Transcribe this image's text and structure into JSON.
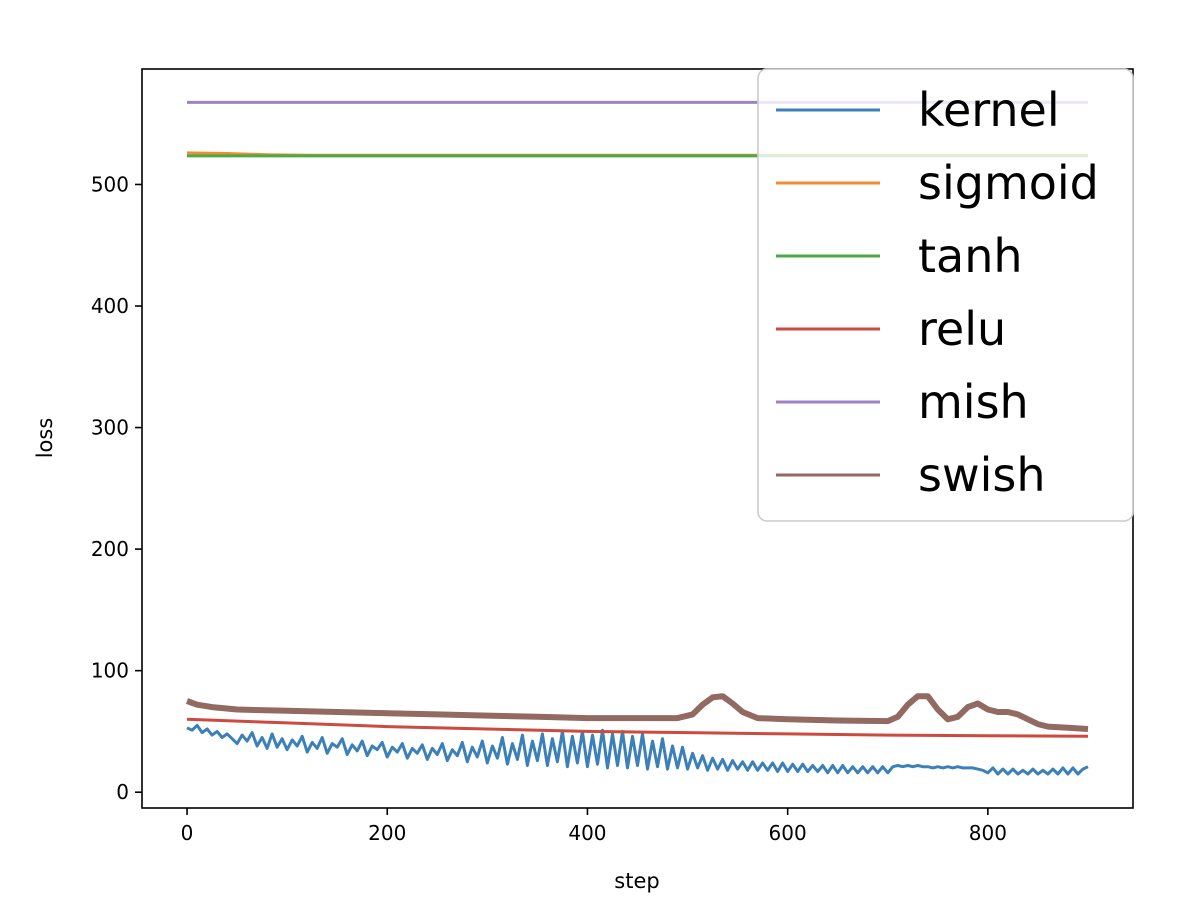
{
  "chart_data": {
    "type": "line",
    "title": "",
    "xlabel": "step",
    "ylabel": "loss",
    "xlim": [
      -45,
      945
    ],
    "ylim": [
      -13,
      595
    ],
    "xticks": [
      0,
      200,
      400,
      600,
      800
    ],
    "yticks": [
      0,
      100,
      200,
      300,
      400,
      500
    ],
    "xtick_labels": [
      "0",
      "200",
      "400",
      "600",
      "800"
    ],
    "ytick_labels": [
      "0",
      "100",
      "200",
      "300",
      "400",
      "500"
    ],
    "grid": false,
    "legend_position": "top-right",
    "series": [
      {
        "name": "kernel",
        "color": "#3b80b9",
        "x": [
          0,
          5,
          10,
          15,
          20,
          25,
          30,
          35,
          40,
          45,
          50,
          55,
          60,
          65,
          70,
          75,
          80,
          85,
          90,
          95,
          100,
          105,
          110,
          115,
          120,
          125,
          130,
          135,
          140,
          145,
          150,
          155,
          160,
          165,
          170,
          175,
          180,
          185,
          190,
          195,
          200,
          205,
          210,
          215,
          220,
          225,
          230,
          235,
          240,
          245,
          250,
          255,
          260,
          265,
          270,
          275,
          280,
          285,
          290,
          295,
          300,
          305,
          310,
          315,
          320,
          325,
          330,
          335,
          340,
          345,
          350,
          355,
          360,
          365,
          370,
          375,
          380,
          385,
          390,
          395,
          400,
          405,
          410,
          415,
          420,
          425,
          430,
          435,
          440,
          445,
          450,
          455,
          460,
          465,
          470,
          475,
          480,
          485,
          490,
          495,
          500,
          505,
          510,
          515,
          520,
          525,
          530,
          535,
          540,
          545,
          550,
          555,
          560,
          565,
          570,
          575,
          580,
          585,
          590,
          595,
          600,
          605,
          610,
          615,
          620,
          625,
          630,
          635,
          640,
          645,
          650,
          655,
          660,
          665,
          670,
          675,
          680,
          685,
          690,
          695,
          700,
          705,
          710,
          715,
          720,
          725,
          730,
          735,
          740,
          745,
          750,
          755,
          760,
          765,
          770,
          775,
          780,
          785,
          790,
          795,
          800,
          805,
          810,
          815,
          820,
          825,
          830,
          835,
          840,
          845,
          850,
          855,
          860,
          865,
          870,
          875,
          880,
          885,
          890,
          895,
          900
        ],
        "y": [
          53,
          51,
          55,
          49,
          52,
          47,
          50,
          45,
          48,
          44,
          40,
          47,
          42,
          49,
          38,
          45,
          36,
          48,
          37,
          44,
          35,
          43,
          38,
          46,
          33,
          41,
          36,
          45,
          32,
          40,
          37,
          44,
          31,
          39,
          34,
          42,
          30,
          38,
          35,
          41,
          29,
          37,
          33,
          40,
          28,
          36,
          32,
          39,
          27,
          36,
          31,
          40,
          26,
          35,
          30,
          41,
          25,
          37,
          29,
          42,
          24,
          38,
          28,
          45,
          23,
          40,
          27,
          47,
          22,
          42,
          26,
          48,
          22,
          44,
          25,
          50,
          21,
          46,
          24,
          50,
          21,
          47,
          23,
          51,
          20,
          48,
          22,
          50,
          20,
          46,
          22,
          48,
          19,
          42,
          21,
          44,
          19,
          38,
          20,
          37,
          19,
          32,
          20,
          30,
          18,
          28,
          19,
          27,
          18,
          26,
          19,
          25,
          18,
          25,
          18,
          24,
          18,
          24,
          17,
          24,
          17,
          23,
          17,
          23,
          17,
          22,
          17,
          22,
          16,
          22,
          16,
          22,
          16,
          21,
          16,
          21,
          16,
          21,
          16,
          21,
          16,
          21,
          22,
          21,
          22,
          21,
          22,
          21,
          21,
          20,
          21,
          20,
          21,
          20,
          21,
          20,
          20,
          20,
          19,
          18,
          16,
          20,
          15,
          19,
          15,
          19,
          15,
          18,
          15,
          19,
          15,
          18,
          15,
          19,
          15,
          20,
          15,
          20,
          15,
          19,
          21
        ],
        "thick": false
      },
      {
        "name": "sigmoid",
        "color": "#ef8f32",
        "x": [
          0,
          40,
          80,
          120,
          200,
          300,
          400,
          500,
          600,
          700,
          800,
          900
        ],
        "y": [
          526,
          525.5,
          524.5,
          524,
          524,
          524,
          524,
          524,
          524,
          524,
          524,
          524
        ],
        "thick": false
      },
      {
        "name": "tanh",
        "color": "#4ea844",
        "x": [
          0,
          100,
          200,
          300,
          400,
          500,
          600,
          700,
          800,
          900
        ],
        "y": [
          523.5,
          523.5,
          523.5,
          523.5,
          523.5,
          523.5,
          523.5,
          523.5,
          523.5,
          523.5
        ],
        "thick": false
      },
      {
        "name": "relu",
        "color": "#cc4a3f",
        "x": [
          0,
          100,
          200,
          300,
          400,
          500,
          600,
          700,
          800,
          900
        ],
        "y": [
          60,
          57,
          54,
          52,
          50,
          49,
          48,
          47,
          46.5,
          46
        ],
        "thick": false
      },
      {
        "name": "mish",
        "color": "#9e82c6",
        "x": [
          0,
          100,
          200,
          300,
          400,
          500,
          600,
          700,
          800,
          900
        ],
        "y": [
          567.5,
          567.5,
          567.5,
          567.5,
          567.5,
          567.5,
          567.5,
          567.5,
          567.5,
          567.5
        ],
        "thick": false
      },
      {
        "name": "swish",
        "color": "#936a61",
        "x": [
          0,
          10,
          25,
          50,
          100,
          150,
          200,
          250,
          300,
          350,
          400,
          450,
          490,
          505,
          515,
          525,
          535,
          545,
          555,
          570,
          600,
          650,
          700,
          710,
          720,
          730,
          740,
          750,
          760,
          770,
          780,
          790,
          800,
          810,
          820,
          830,
          840,
          850,
          860,
          880,
          900
        ],
        "y": [
          75,
          72,
          70,
          68,
          67,
          66,
          65,
          64,
          63,
          62,
          61,
          61,
          61,
          64,
          72,
          78,
          79,
          73,
          66,
          61,
          60,
          59,
          58.5,
          62,
          72,
          79,
          79,
          68,
          60,
          62,
          70,
          73,
          68,
          66,
          66,
          64,
          60,
          56,
          54,
          53,
          52
        ],
        "thick": true
      }
    ]
  }
}
